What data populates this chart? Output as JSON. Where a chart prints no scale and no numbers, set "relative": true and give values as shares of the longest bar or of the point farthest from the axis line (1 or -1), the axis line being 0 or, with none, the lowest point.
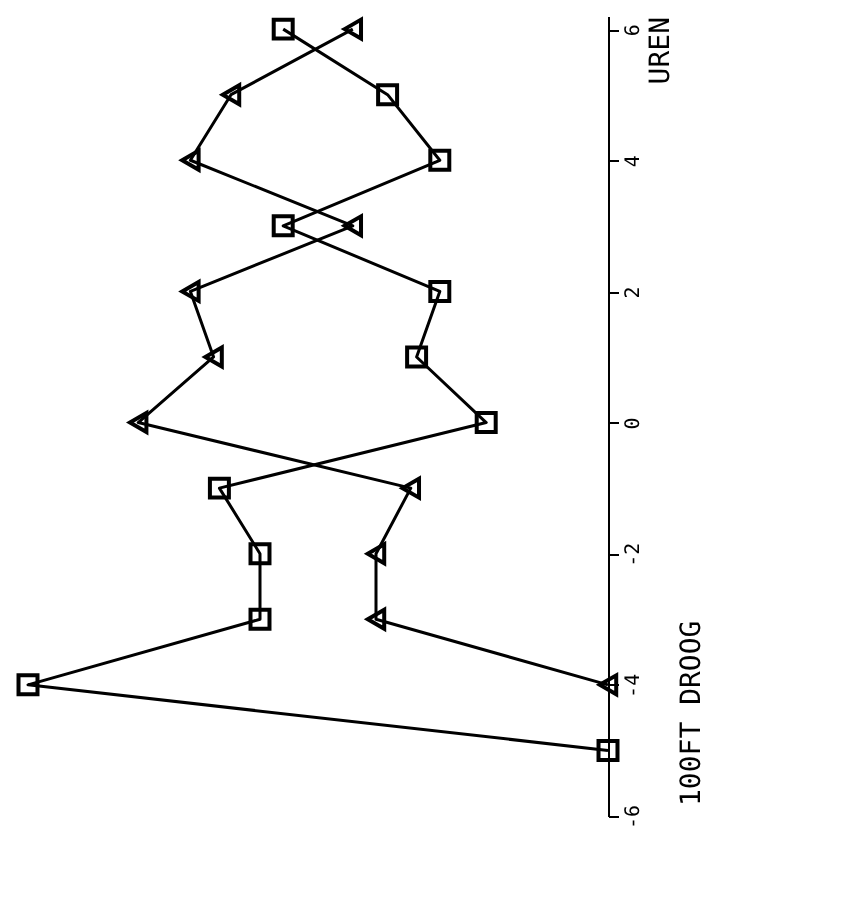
{
  "chart_data": {
    "type": "line",
    "orientation": "horizontal",
    "ylabel": "UREN",
    "annotations": [
      "100FT DROOG"
    ],
    "relative": true,
    "ylim": [
      -6,
      6.2
    ],
    "yticks": [
      -6,
      -4,
      -2,
      0,
      2,
      4,
      6
    ],
    "legend": false,
    "grid": false,
    "line_style": "solid",
    "series": [
      {
        "color": "#000000",
        "marker": "square",
        "x": [
          6,
          5,
          4,
          3,
          2,
          1,
          0,
          -1,
          -2,
          -3,
          -4,
          -5
        ],
        "values": [
          -0.56,
          -0.38,
          -0.29,
          -0.56,
          -0.29,
          -0.33,
          -0.21,
          -0.67,
          -0.6,
          -0.6,
          -1,
          0
        ]
      },
      {
        "color": "#000000",
        "marker": "triangle",
        "x": [
          6,
          5,
          4,
          3,
          2,
          1,
          0,
          -1,
          -2,
          -3,
          -4
        ],
        "values": [
          -0.44,
          -0.65,
          -0.72,
          -0.44,
          -0.72,
          -0.68,
          -0.81,
          -0.34,
          -0.4,
          -0.4,
          0
        ]
      }
    ]
  }
}
